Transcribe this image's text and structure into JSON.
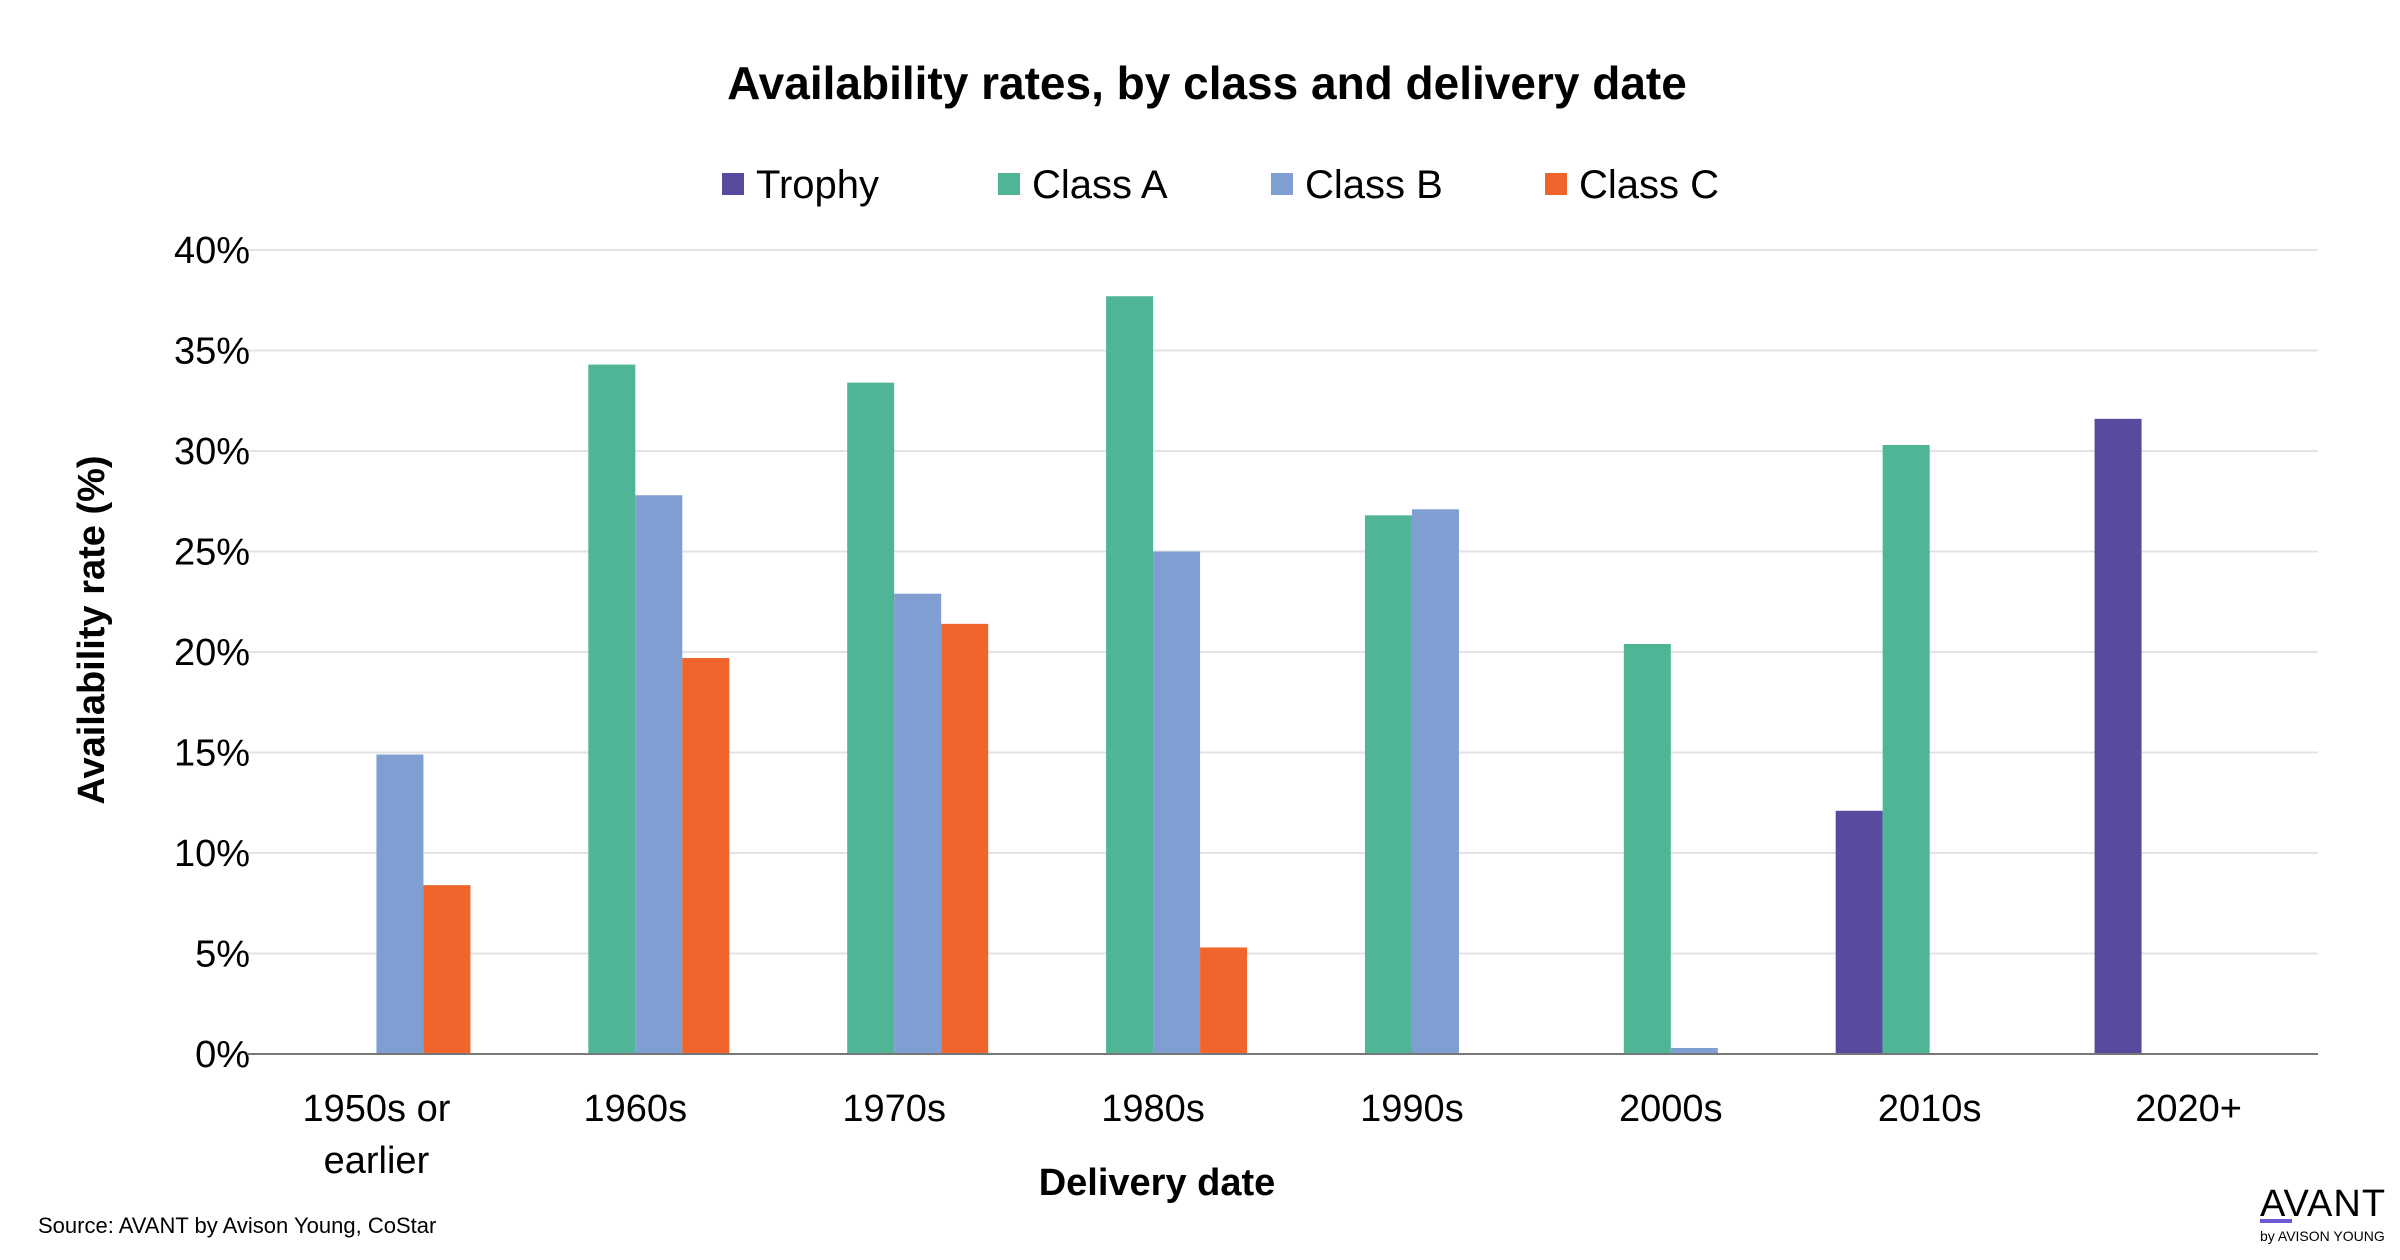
{
  "chart_data": {
    "type": "bar",
    "title": "Availability rates, by class and delivery date",
    "xlabel": "Delivery date",
    "ylabel": "Availability rate (%)",
    "ylim": [
      0,
      40
    ],
    "yticks": [
      "0%",
      "5%",
      "10%",
      "15%",
      "20%",
      "25%",
      "30%",
      "35%",
      "40%"
    ],
    "grid": true,
    "legend_position": "top",
    "categories": [
      [
        "1950s or",
        "earlier"
      ],
      [
        "1960s"
      ],
      [
        "1970s"
      ],
      [
        "1980s"
      ],
      [
        "1990s"
      ],
      [
        "2000s"
      ],
      [
        "2010s"
      ],
      [
        "2020+"
      ]
    ],
    "series": [
      {
        "name": "Trophy",
        "color": "#584a9f",
        "values": [
          null,
          null,
          null,
          null,
          null,
          null,
          12.1,
          31.6
        ]
      },
      {
        "name": "Class A",
        "color": "#4fb596",
        "values": [
          null,
          34.3,
          33.4,
          37.7,
          26.8,
          20.4,
          30.3,
          null
        ]
      },
      {
        "name": "Class B",
        "color": "#7f9fd3",
        "values": [
          14.9,
          27.8,
          22.9,
          25.0,
          27.1,
          0.3,
          null,
          null
        ]
      },
      {
        "name": "Class C",
        "color": "#f0652b",
        "values": [
          8.4,
          19.7,
          21.4,
          5.3,
          null,
          null,
          null,
          null
        ]
      }
    ]
  },
  "footer": {
    "source": "Source: AVANT by Avison Young, CoStar"
  },
  "logo": {
    "main": "AVANT",
    "sub": "by AVISON YOUNG",
    "accent_color": "#6b5bd6"
  }
}
